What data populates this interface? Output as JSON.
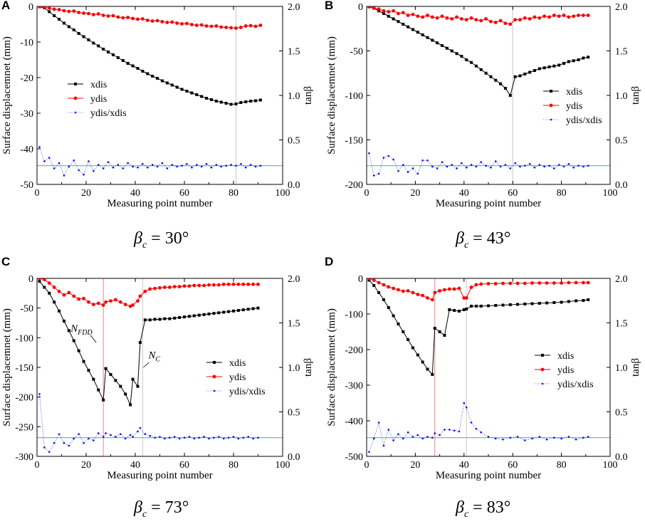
{
  "captions": [
    {
      "symbol": "β",
      "subscript": "c",
      "text": " = 30°"
    },
    {
      "symbol": "β",
      "subscript": "c",
      "text": " = 43°"
    },
    {
      "symbol": "β",
      "subscript": "c",
      "text": " = 73°"
    },
    {
      "symbol": "β",
      "subscript": "c",
      "text": " = 83°"
    }
  ],
  "colors": {
    "xdis": "#000000",
    "ydis": "#ff0000",
    "ratio": "#0000ff",
    "ref_line": "#4caf93",
    "vline_gray": "#c8c8c8",
    "vline_red": "#ff8080"
  },
  "chart_data": [
    {
      "panel_label": "A",
      "type": "line",
      "title": "",
      "xlabel": "Measuring point number",
      "ylabel": "Surface displacemnet (mm)",
      "y2label": "tanβ",
      "xlim": [
        0,
        100
      ],
      "xticks": [
        0,
        20,
        40,
        60,
        80,
        100
      ],
      "ylim": [
        -50,
        0
      ],
      "yticks": [
        0,
        -10,
        -20,
        -30,
        -40,
        -50
      ],
      "y2lim": [
        0,
        2
      ],
      "y2ticks": [
        "0.0",
        "0.5",
        "1.0",
        "1.5",
        "2.0"
      ],
      "legend": [
        "xdis",
        "ydis",
        "ydis/xdis"
      ],
      "legend_position": "middle-left",
      "x": [
        1,
        3,
        5,
        7,
        9,
        11,
        13,
        15,
        17,
        19,
        21,
        23,
        25,
        27,
        29,
        31,
        33,
        35,
        37,
        39,
        41,
        43,
        45,
        47,
        49,
        51,
        53,
        55,
        57,
        59,
        61,
        63,
        65,
        67,
        69,
        71,
        73,
        75,
        77,
        79,
        81,
        83,
        85,
        87,
        89,
        91
      ],
      "series": [
        {
          "name": "xdis",
          "axis": "left",
          "values": [
            -0.1,
            -0.4,
            -1.5,
            -2.6,
            -3.6,
            -4.7,
            -5.7,
            -6.6,
            -7.6,
            -8.5,
            -9.4,
            -10.3,
            -11.1,
            -12.0,
            -12.8,
            -13.6,
            -14.4,
            -15.2,
            -16.0,
            -16.7,
            -17.4,
            -18.2,
            -18.9,
            -19.6,
            -20.2,
            -20.9,
            -21.5,
            -22.1,
            -22.7,
            -23.3,
            -23.8,
            -24.3,
            -24.8,
            -25.3,
            -25.8,
            -26.2,
            -26.6,
            -26.9,
            -27.2,
            -27.5,
            -27.4,
            -27.0,
            -26.8,
            -26.6,
            -26.5,
            -26.3
          ]
        },
        {
          "name": "ydis",
          "axis": "left",
          "values": [
            0.0,
            -0.2,
            -0.5,
            -0.8,
            -0.9,
            -1.2,
            -1.4,
            -1.3,
            -1.7,
            -1.9,
            -2.0,
            -2.3,
            -2.1,
            -2.5,
            -2.7,
            -2.6,
            -3.0,
            -3.2,
            -3.1,
            -3.4,
            -3.6,
            -3.5,
            -3.9,
            -4.1,
            -4.0,
            -4.3,
            -4.5,
            -4.4,
            -4.7,
            -4.9,
            -4.8,
            -5.1,
            -5.3,
            -5.2,
            -5.5,
            -5.6,
            -5.5,
            -5.8,
            -5.9,
            -6.0,
            -6.1,
            -5.9,
            -5.5,
            -5.4,
            -5.6,
            -5.3
          ]
        },
        {
          "name": "ydis/xdis",
          "axis": "right",
          "values": [
            0.42,
            0.26,
            0.3,
            0.18,
            0.24,
            0.1,
            0.2,
            0.27,
            0.16,
            0.11,
            0.26,
            0.15,
            0.22,
            0.18,
            0.25,
            0.19,
            0.22,
            0.18,
            0.24,
            0.2,
            0.19,
            0.23,
            0.19,
            0.22,
            0.2,
            0.24,
            0.18,
            0.22,
            0.2,
            0.21,
            0.23,
            0.19,
            0.22,
            0.2,
            0.23,
            0.19,
            0.22,
            0.2,
            0.21,
            0.22,
            0.21,
            0.23,
            0.19,
            0.22,
            0.2,
            0.21
          ]
        }
      ],
      "ref_line_y2": 0.21,
      "vlines": [
        81
      ]
    },
    {
      "panel_label": "B",
      "type": "line",
      "title": "",
      "xlabel": "Measuring point number",
      "ylabel": "Surface displacemnet (mm)",
      "y2label": "tanβ",
      "xlim": [
        0,
        100
      ],
      "xticks": [
        0,
        20,
        40,
        60,
        80,
        100
      ],
      "ylim": [
        -200,
        0
      ],
      "yticks": [
        0,
        -50,
        -100,
        -150,
        -200
      ],
      "y2lim": [
        0,
        2
      ],
      "y2ticks": [
        "0.0",
        "0.5",
        "1.0",
        "1.5",
        "2.0"
      ],
      "legend": [
        "xdis",
        "ydis",
        "ydis/xdis"
      ],
      "legend_position": "middle-right",
      "x": [
        1,
        3,
        5,
        7,
        9,
        11,
        13,
        15,
        17,
        19,
        21,
        23,
        25,
        27,
        29,
        31,
        33,
        35,
        37,
        39,
        41,
        43,
        45,
        47,
        49,
        51,
        53,
        55,
        57,
        59,
        61,
        63,
        65,
        67,
        69,
        71,
        73,
        75,
        77,
        79,
        81,
        83,
        85,
        87,
        89,
        91
      ],
      "series": [
        {
          "name": "xdis",
          "axis": "left",
          "values": [
            -0.5,
            -2,
            -5,
            -8,
            -11,
            -14,
            -17,
            -20,
            -23,
            -26,
            -29,
            -32,
            -35,
            -38,
            -41,
            -44,
            -47,
            -50,
            -53,
            -56,
            -60,
            -63,
            -67,
            -71,
            -75,
            -79,
            -83,
            -87,
            -92,
            -100,
            -79,
            -78,
            -76,
            -74,
            -72,
            -70,
            -69,
            -68,
            -67,
            -66,
            -64,
            -62,
            -61,
            -60,
            -58,
            -57
          ]
        },
        {
          "name": "ydis",
          "axis": "left",
          "values": [
            0,
            -2,
            -3,
            -5,
            -6,
            -5,
            -8,
            -7,
            -10,
            -9,
            -11,
            -12,
            -10,
            -12,
            -13,
            -11,
            -13,
            -14,
            -12,
            -14,
            -15,
            -13,
            -15,
            -16,
            -14,
            -17,
            -18,
            -16,
            -19,
            -20,
            -15,
            -15,
            -13,
            -14,
            -12,
            -13,
            -11,
            -12,
            -10,
            -11,
            -10,
            -12,
            -11,
            -10,
            -10,
            -10
          ]
        },
        {
          "name": "ydis/xdis",
          "axis": "right",
          "values": [
            0.35,
            0.1,
            0.12,
            0.3,
            0.32,
            0.28,
            0.15,
            0.22,
            0.14,
            0.18,
            0.12,
            0.27,
            0.27,
            0.2,
            0.18,
            0.25,
            0.2,
            0.22,
            0.18,
            0.24,
            0.19,
            0.22,
            0.2,
            0.25,
            0.21,
            0.19,
            0.26,
            0.2,
            0.22,
            0.18,
            0.24,
            0.2,
            0.21,
            0.23,
            0.19,
            0.22,
            0.2,
            0.21,
            0.18,
            0.22,
            0.2,
            0.23,
            0.19,
            0.21,
            0.2,
            0.21
          ]
        }
      ],
      "ref_line_y2": 0.21,
      "vlines": [
        60
      ]
    },
    {
      "panel_label": "C",
      "type": "line",
      "title": "",
      "xlabel": "Measuring point number",
      "ylabel": "Surface displacemnet (mm)",
      "y2label": "tanβ",
      "xlim": [
        0,
        100
      ],
      "xticks": [
        0,
        20,
        40,
        60,
        80,
        100
      ],
      "ylim": [
        -300,
        0
      ],
      "yticks": [
        0,
        -50,
        -100,
        -150,
        -200,
        -250,
        -300
      ],
      "y2lim": [
        0,
        2
      ],
      "y2ticks": [
        "0.0",
        "0.5",
        "1.0",
        "1.5",
        "2.0"
      ],
      "legend": [
        "xdis",
        "ydis",
        "ydis/xdis"
      ],
      "legend_position": "middle-right",
      "annotations": [
        {
          "label": "N",
          "sub": "FDD",
          "x": 27
        },
        {
          "label": "N",
          "sub": "C",
          "x": 43
        }
      ],
      "x": [
        1,
        3,
        5,
        7,
        9,
        11,
        13,
        15,
        17,
        19,
        21,
        23,
        25,
        27,
        28,
        30,
        32,
        34,
        36,
        38,
        39,
        41,
        42,
        44,
        46,
        48,
        50,
        52,
        54,
        56,
        58,
        60,
        62,
        64,
        66,
        68,
        70,
        72,
        74,
        76,
        78,
        80,
        82,
        84,
        86,
        88,
        90
      ],
      "series": [
        {
          "name": "xdis",
          "axis": "left",
          "values": [
            -5,
            -15,
            -25,
            -40,
            -55,
            -72,
            -88,
            -105,
            -122,
            -140,
            -155,
            -170,
            -188,
            -205,
            -152,
            -162,
            -172,
            -182,
            -195,
            -213,
            -170,
            -182,
            -108,
            -70,
            -70,
            -69,
            -69,
            -68,
            -68,
            -67,
            -66,
            -65,
            -64,
            -63,
            -62,
            -61,
            -60,
            -59,
            -58,
            -57,
            -56,
            -55,
            -54,
            -53,
            -52,
            -51,
            -50
          ]
        },
        {
          "name": "ydis",
          "axis": "left",
          "values": [
            0,
            -2,
            -8,
            -15,
            -22,
            -28,
            -24,
            -30,
            -35,
            -34,
            -40,
            -44,
            -42,
            -45,
            -40,
            -38,
            -36,
            -40,
            -44,
            -47,
            -45,
            -38,
            -30,
            -22,
            -18,
            -17,
            -16,
            -15,
            -15,
            -14,
            -14,
            -13,
            -13,
            -12,
            -12,
            -12,
            -11,
            -11,
            -11,
            -10,
            -10,
            -10,
            -10,
            -10,
            -10,
            -10,
            -10
          ]
        },
        {
          "name": "ydis/xdis",
          "axis": "right",
          "values": [
            0.7,
            0.1,
            0.05,
            0.15,
            0.25,
            0.15,
            0.12,
            0.2,
            0.25,
            0.15,
            0.2,
            0.18,
            0.26,
            0.22,
            0.26,
            0.24,
            0.22,
            0.25,
            0.2,
            0.24,
            0.22,
            0.28,
            0.32,
            0.25,
            0.23,
            0.21,
            0.22,
            0.2,
            0.21,
            0.22,
            0.2,
            0.21,
            0.22,
            0.2,
            0.21,
            0.22,
            0.2,
            0.21,
            0.22,
            0.2,
            0.21,
            0.22,
            0.2,
            0.21,
            0.22,
            0.2,
            0.21
          ]
        }
      ],
      "ref_line_y2": 0.21,
      "vlines": [
        27,
        43
      ]
    },
    {
      "panel_label": "D",
      "type": "line",
      "title": "",
      "xlabel": "Measuring point number",
      "ylabel": "Surface displacemnet (mm)",
      "y2label": "tanβ",
      "xlim": [
        0,
        100
      ],
      "xticks": [
        0,
        20,
        40,
        60,
        80,
        100
      ],
      "ylim": [
        -500,
        0
      ],
      "yticks": [
        0,
        -100,
        -200,
        -300,
        -400,
        -500
      ],
      "y2lim": [
        0,
        2
      ],
      "y2ticks": [
        "0.0",
        "0.5",
        "1.0",
        "1.5",
        "2.0"
      ],
      "legend": [
        "xdis",
        "ydis",
        "ydis/xdis"
      ],
      "legend_position": "middle-right",
      "x": [
        1,
        3,
        5,
        7,
        9,
        11,
        13,
        15,
        17,
        19,
        21,
        23,
        25,
        27,
        28,
        30,
        32,
        34,
        36,
        38,
        40,
        41,
        43,
        45,
        47,
        50,
        53,
        56,
        59,
        62,
        65,
        68,
        71,
        74,
        77,
        80,
        83,
        86,
        89,
        91
      ],
      "series": [
        {
          "name": "xdis",
          "axis": "left",
          "values": [
            -5,
            -20,
            -40,
            -60,
            -82,
            -105,
            -128,
            -150,
            -172,
            -195,
            -215,
            -235,
            -255,
            -270,
            -140,
            -150,
            -160,
            -88,
            -90,
            -92,
            -88,
            -86,
            -78,
            -78,
            -78,
            -77,
            -76,
            -75,
            -74,
            -73,
            -72,
            -71,
            -70,
            -69,
            -68,
            -67,
            -65,
            -63,
            -62,
            -60
          ]
        },
        {
          "name": "ydis",
          "axis": "left",
          "values": [
            0,
            -5,
            -12,
            -18,
            -24,
            -28,
            -32,
            -36,
            -35,
            -40,
            -45,
            -48,
            -55,
            -60,
            -40,
            -35,
            -32,
            -30,
            -30,
            -28,
            -55,
            -55,
            -25,
            -18,
            -16,
            -15,
            -15,
            -14,
            -14,
            -14,
            -14,
            -13,
            -13,
            -13,
            -13,
            -13,
            -12,
            -12,
            -12,
            -12
          ]
        },
        {
          "name": "ydis/xdis",
          "axis": "right",
          "values": [
            0.05,
            0.2,
            0.38,
            0.12,
            0.3,
            0.18,
            0.25,
            0.2,
            0.27,
            0.22,
            0.24,
            0.2,
            0.22,
            0.21,
            0.26,
            0.24,
            0.3,
            0.3,
            0.29,
            0.28,
            0.6,
            0.55,
            0.38,
            0.31,
            0.27,
            0.22,
            0.2,
            0.19,
            0.21,
            0.22,
            0.18,
            0.2,
            0.22,
            0.19,
            0.21,
            0.2,
            0.22,
            0.19,
            0.21,
            0.22
          ]
        }
      ],
      "ref_line_y2": 0.21,
      "vlines": [
        28,
        41
      ]
    }
  ]
}
